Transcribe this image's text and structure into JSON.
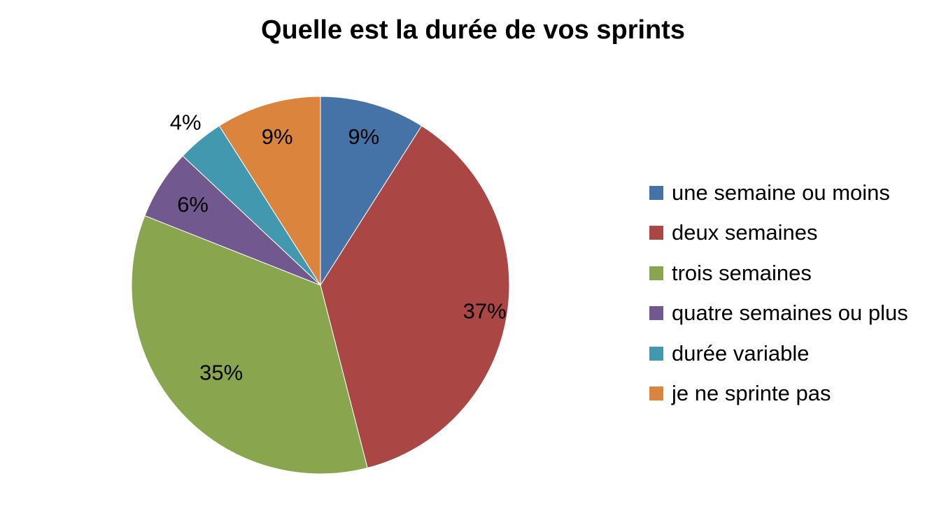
{
  "chart_data": {
    "type": "pie",
    "title": "Quelle est la durée de vos sprints",
    "legend_position": "right",
    "slices": [
      {
        "label": "une semaine ou moins",
        "value": 9,
        "display": "9%",
        "color": "#4572A7"
      },
      {
        "label": "deux semaines",
        "value": 37,
        "display": "37%",
        "color": "#AA4643"
      },
      {
        "label": "trois semaines",
        "value": 35,
        "display": "35%",
        "color": "#89A54E"
      },
      {
        "label": "quatre semaines ou plus",
        "value": 6,
        "display": "6%",
        "color": "#71588F"
      },
      {
        "label": "durée variable",
        "value": 4,
        "display": "4%",
        "color": "#4198AF"
      },
      {
        "label": "je ne sprinte pas",
        "value": 9,
        "display": "9%",
        "color": "#DB843D"
      }
    ]
  }
}
